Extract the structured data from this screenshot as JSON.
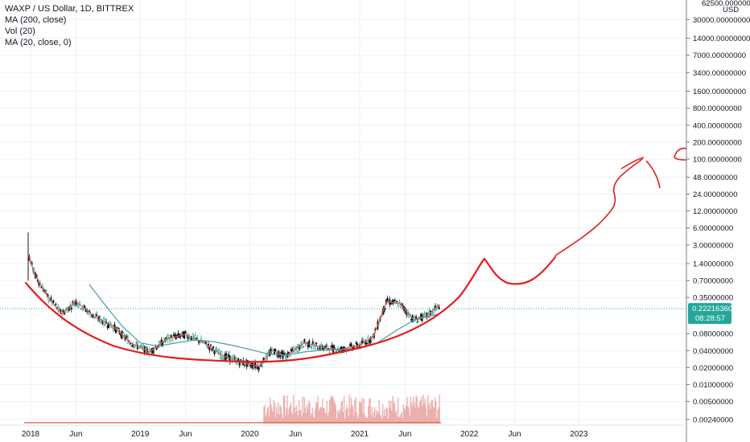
{
  "legend": {
    "symbol": "WAXP / US Dollar, 1D, BITTREX",
    "ma200": "MA (200, close)",
    "vol": "Vol (20)",
    "ma20": "MA (20, close, 0)"
  },
  "axis": {
    "currency": "USD",
    "top_partial": "62500.00000000",
    "y_ticks": [
      "30000.00000000",
      "14000.00000000",
      "7000.00000000",
      "3400.00000000",
      "1600.00000000",
      "800.00000000",
      "400.00000000",
      "200.00000000",
      "100.00000000",
      "48.00000000",
      "24.00000000",
      "12.00000000",
      "6.00000000",
      "3.00000000",
      "1.40000000",
      "0.70000000",
      "0.35000000",
      "0.08000000",
      "0.04000000",
      "0.02000000",
      "0.01000000",
      "0.00500000",
      "0.00240000"
    ],
    "y_values": [
      30000,
      14000,
      7000,
      3400,
      1600,
      800,
      400,
      200,
      100,
      48,
      24,
      12,
      6,
      3,
      1.4,
      0.7,
      0.35,
      0.08,
      0.04,
      0.02,
      0.01,
      0.005,
      0.0024
    ],
    "x_ticks": [
      "2018",
      "Jun",
      "2019",
      "Jun",
      "2020",
      "Jun",
      "2021",
      "Jun",
      "2022",
      "Jun",
      "2023"
    ]
  },
  "last_price": {
    "value": "0.22216360",
    "countdown": "08:28:57",
    "color": "#26a69a"
  },
  "colors": {
    "candle_up": "#26a69a",
    "candle_down": "#131722",
    "ma_line": "#e65a3c",
    "ma200_line": "#4a9aa8",
    "drawing": "#e61c1c",
    "volume": "#e8a09c",
    "grid": "#eef0f3"
  },
  "chart_data": {
    "type": "line",
    "title": "WAXP / US Dollar, 1D, BITTREX",
    "xlabel": "",
    "ylabel": "USD",
    "y_scale": "log",
    "ylim": [
      0.002,
      62500
    ],
    "x_range": [
      "2017-12",
      "2023-09"
    ],
    "series": [
      {
        "name": "MA (20, close)",
        "x": [
          "2017-12-25",
          "2018-01-15",
          "2018-03-01",
          "2018-04-15",
          "2018-06-01",
          "2018-08-01",
          "2018-10-01",
          "2018-12-01",
          "2019-02-01",
          "2019-04-01",
          "2019-06-01",
          "2019-08-01",
          "2019-10-01",
          "2019-12-01",
          "2020-02-01",
          "2020-03-15",
          "2020-05-01",
          "2020-07-01",
          "2020-09-01",
          "2020-11-01",
          "2021-01-01",
          "2021-02-15",
          "2021-04-01",
          "2021-05-15",
          "2021-07-01",
          "2021-08-15",
          "2021-09-25"
        ],
        "values": [
          2.0,
          0.9,
          0.35,
          0.18,
          0.3,
          0.16,
          0.11,
          0.055,
          0.038,
          0.065,
          0.078,
          0.055,
          0.033,
          0.025,
          0.021,
          0.04,
          0.032,
          0.055,
          0.045,
          0.042,
          0.05,
          0.07,
          0.3,
          0.27,
          0.14,
          0.17,
          0.26
        ]
      },
      {
        "name": "MA (200, close)",
        "x": [
          "2018-07-15",
          "2018-09-01",
          "2018-11-01",
          "2019-01-01",
          "2019-03-01",
          "2019-05-01",
          "2019-07-01",
          "2019-09-01",
          "2019-11-01",
          "2020-01-01",
          "2020-03-01",
          "2020-05-01",
          "2020-07-01",
          "2020-09-01",
          "2020-11-01",
          "2021-01-01",
          "2021-03-01",
          "2021-05-01",
          "2021-07-01",
          "2021-09-25"
        ],
        "values": [
          0.6,
          0.28,
          0.11,
          0.055,
          0.048,
          0.055,
          0.062,
          0.058,
          0.05,
          0.042,
          0.035,
          0.033,
          0.038,
          0.041,
          0.042,
          0.044,
          0.055,
          0.09,
          0.14,
          0.18
        ]
      }
    ],
    "volume_note": "Vol (20)",
    "last_value": 0.2221636
  }
}
